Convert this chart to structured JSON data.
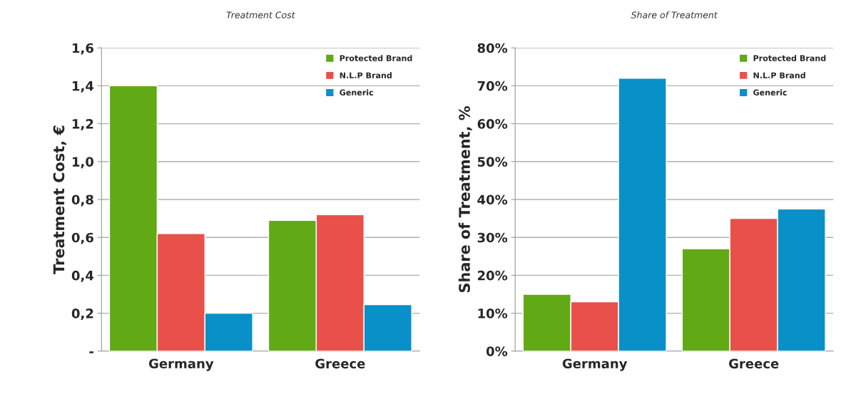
{
  "chart_data": [
    {
      "type": "bar",
      "title": "Treatment Cost",
      "ylabel": "Treatment Cost, €",
      "categories": [
        "Germany",
        "Greece"
      ],
      "series": [
        {
          "name": "Protected Brand",
          "color": "#62a916",
          "values": [
            1.4,
            0.69
          ]
        },
        {
          "name": "N.L.P Brand",
          "color": "#e8514a",
          "values": [
            0.62,
            0.72
          ]
        },
        {
          "name": "Generic",
          "color": "#0a90c8",
          "values": [
            0.2,
            0.245
          ]
        }
      ],
      "ylim": [
        0,
        1.6
      ],
      "yticks": [
        {
          "value": 0,
          "label": "-"
        },
        {
          "value": 0.2,
          "label": "0,2"
        },
        {
          "value": 0.4,
          "label": "0,4"
        },
        {
          "value": 0.6,
          "label": "0,6"
        },
        {
          "value": 0.8,
          "label": "0,8"
        },
        {
          "value": 1.0,
          "label": "1,0"
        },
        {
          "value": 1.2,
          "label": "1,2"
        },
        {
          "value": 1.4,
          "label": "1,4"
        },
        {
          "value": 1.6,
          "label": "1,6"
        }
      ],
      "grid": "y",
      "legend": "top right"
    },
    {
      "type": "bar",
      "title": "Share of Treatment",
      "ylabel": "Share of Treatment, %",
      "categories": [
        "Germany",
        "Greece"
      ],
      "series": [
        {
          "name": "Protected Brand",
          "color": "#62a916",
          "values": [
            15,
            27
          ]
        },
        {
          "name": "N.L.P Brand",
          "color": "#e8514a",
          "values": [
            13,
            35
          ]
        },
        {
          "name": "Generic",
          "color": "#0a90c8",
          "values": [
            72,
            37.5
          ]
        }
      ],
      "ylim": [
        0,
        80
      ],
      "yticks": [
        {
          "value": 0,
          "label": "0%"
        },
        {
          "value": 10,
          "label": "10%"
        },
        {
          "value": 20,
          "label": "20%"
        },
        {
          "value": 30,
          "label": "30%"
        },
        {
          "value": 40,
          "label": "40%"
        },
        {
          "value": 50,
          "label": "50%"
        },
        {
          "value": 60,
          "label": "60%"
        },
        {
          "value": 70,
          "label": "70%"
        },
        {
          "value": 80,
          "label": "80%"
        }
      ],
      "grid": "y",
      "legend": "top right"
    }
  ]
}
